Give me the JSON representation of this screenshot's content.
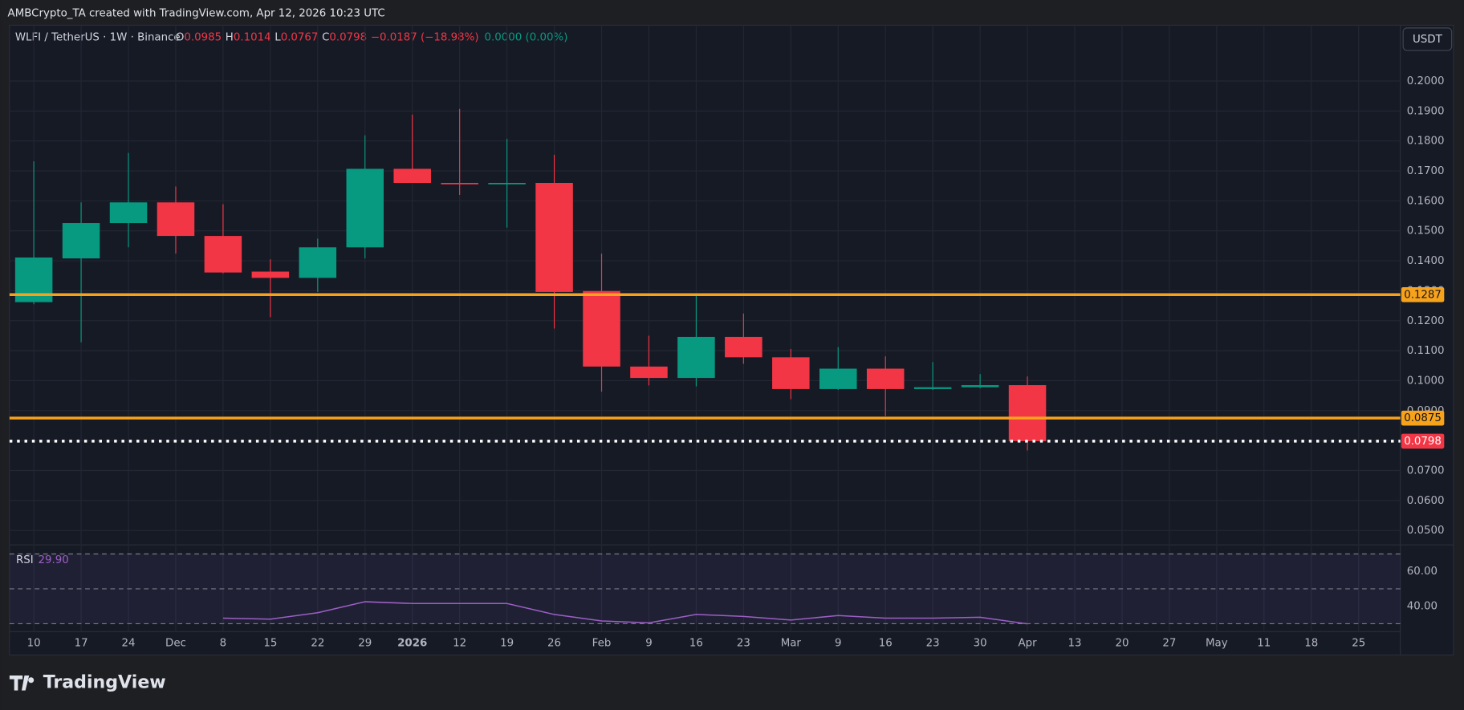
{
  "credit": "AMBCrypto_TA created with TradingView.com, Apr 12, 2026 10:23 UTC",
  "logo": "TradingView",
  "currency_button": "USDT",
  "header": {
    "symbol": "WLFI / TetherUS · 1W · Binance",
    "ohlc": [
      {
        "label": "O",
        "value": "0.0985"
      },
      {
        "label": "H",
        "value": "0.1014"
      },
      {
        "label": "L",
        "value": "0.0767"
      },
      {
        "label": "C",
        "value": "0.0798"
      }
    ],
    "change": "−0.0187 (−18.98%)",
    "volume_change": "0.0000 (0.00%)"
  },
  "chart_data": {
    "type": "candlestick",
    "categories": [
      "10",
      "17",
      "24",
      "Dec",
      "8",
      "15",
      "22",
      "29",
      "2026",
      "12",
      "19",
      "26",
      "Feb",
      "9",
      "16",
      "23",
      "Mar",
      "9",
      "16",
      "23",
      "30",
      "Apr",
      "13",
      "20",
      "27",
      "May",
      "11",
      "18",
      "25"
    ],
    "open": [
      0.1262,
      0.1408,
      0.1526,
      0.1595,
      0.1483,
      0.1364,
      0.1343,
      0.1445,
      0.1707,
      0.166,
      0.1657,
      0.166,
      0.1299,
      0.1047,
      0.1009,
      0.1146,
      0.1078,
      0.0972,
      0.104,
      0.0972,
      0.0978,
      0.0985,
      null,
      null,
      null,
      null,
      null,
      null,
      null
    ],
    "high": [
      0.1732,
      0.1595,
      0.176,
      0.1648,
      0.1589,
      0.1405,
      0.1474,
      0.1819,
      0.1888,
      0.1907,
      0.1807,
      0.1754,
      0.1424,
      0.115,
      0.1287,
      0.1224,
      0.1106,
      0.1112,
      0.1081,
      0.1062,
      0.1022,
      0.1014,
      null,
      null,
      null,
      null,
      null,
      null,
      null
    ],
    "low": [
      0.1255,
      0.1128,
      0.1445,
      0.1424,
      0.1358,
      0.1212,
      0.1296,
      0.1408,
      0.166,
      0.162,
      0.1511,
      0.1174,
      0.0963,
      0.0984,
      0.0981,
      0.1056,
      0.0938,
      0.0969,
      0.0882,
      0.0969,
      0.0975,
      0.0767,
      null,
      null,
      null,
      null,
      null,
      null,
      null
    ],
    "close": [
      0.1411,
      0.1526,
      0.1595,
      0.1483,
      0.1361,
      0.1343,
      0.1445,
      0.1707,
      0.166,
      0.1657,
      0.166,
      0.1296,
      0.1047,
      0.1009,
      0.1146,
      0.1078,
      0.0972,
      0.104,
      0.0972,
      0.0978,
      0.0985,
      0.0798,
      null,
      null,
      null,
      null,
      null,
      null,
      null
    ],
    "up_color": "#089981",
    "down_color": "#f23645",
    "ylim": [
      0.0455,
      0.2093
    ],
    "yticks": [
      {
        "value": 0.05,
        "label": "0.0500"
      },
      {
        "value": 0.06,
        "label": "0.0600"
      },
      {
        "value": 0.07,
        "label": "0.0700"
      },
      {
        "value": 0.08,
        "label": "0.0800"
      },
      {
        "value": 0.09,
        "label": "0.0900"
      },
      {
        "value": 0.1,
        "label": "0.1000"
      },
      {
        "value": 0.11,
        "label": "0.1100"
      },
      {
        "value": 0.12,
        "label": "0.1200"
      },
      {
        "value": 0.13,
        "label": "0.1300"
      },
      {
        "value": 0.14,
        "label": "0.1400"
      },
      {
        "value": 0.15,
        "label": "0.1500"
      },
      {
        "value": 0.16,
        "label": "0.1600"
      },
      {
        "value": 0.17,
        "label": "0.1700"
      },
      {
        "value": 0.18,
        "label": "0.1800"
      },
      {
        "value": 0.19,
        "label": "0.1900"
      },
      {
        "value": 0.2,
        "label": "0.2000"
      }
    ],
    "grid": true,
    "hlines": [
      {
        "value": 0.1287,
        "color": "#f7a21b",
        "style": "solid"
      },
      {
        "value": 0.0875,
        "color": "#f7a21b",
        "style": "solid"
      },
      {
        "value": 0.0798,
        "color": "#ffffff",
        "label_color": "#f23645",
        "style": "dotted"
      }
    ],
    "rsi": {
      "name": "RSI",
      "value_label": "29.90",
      "color": "#9c5fc4",
      "values": [
        null,
        null,
        null,
        null,
        33.2,
        32.6,
        36.3,
        42.6,
        41.6,
        41.6,
        41.6,
        35.3,
        31.6,
        30.5,
        35.3,
        34.2,
        32.1,
        34.7,
        33.2,
        33.2,
        33.7,
        29.9,
        null,
        null,
        null,
        null,
        null,
        null,
        null
      ],
      "ylim": [
        26,
        72
      ],
      "yticks": [
        {
          "value": 40,
          "label": "40.00"
        },
        {
          "value": 60,
          "label": "60.00"
        }
      ],
      "bands": [
        30,
        50,
        70
      ]
    }
  }
}
